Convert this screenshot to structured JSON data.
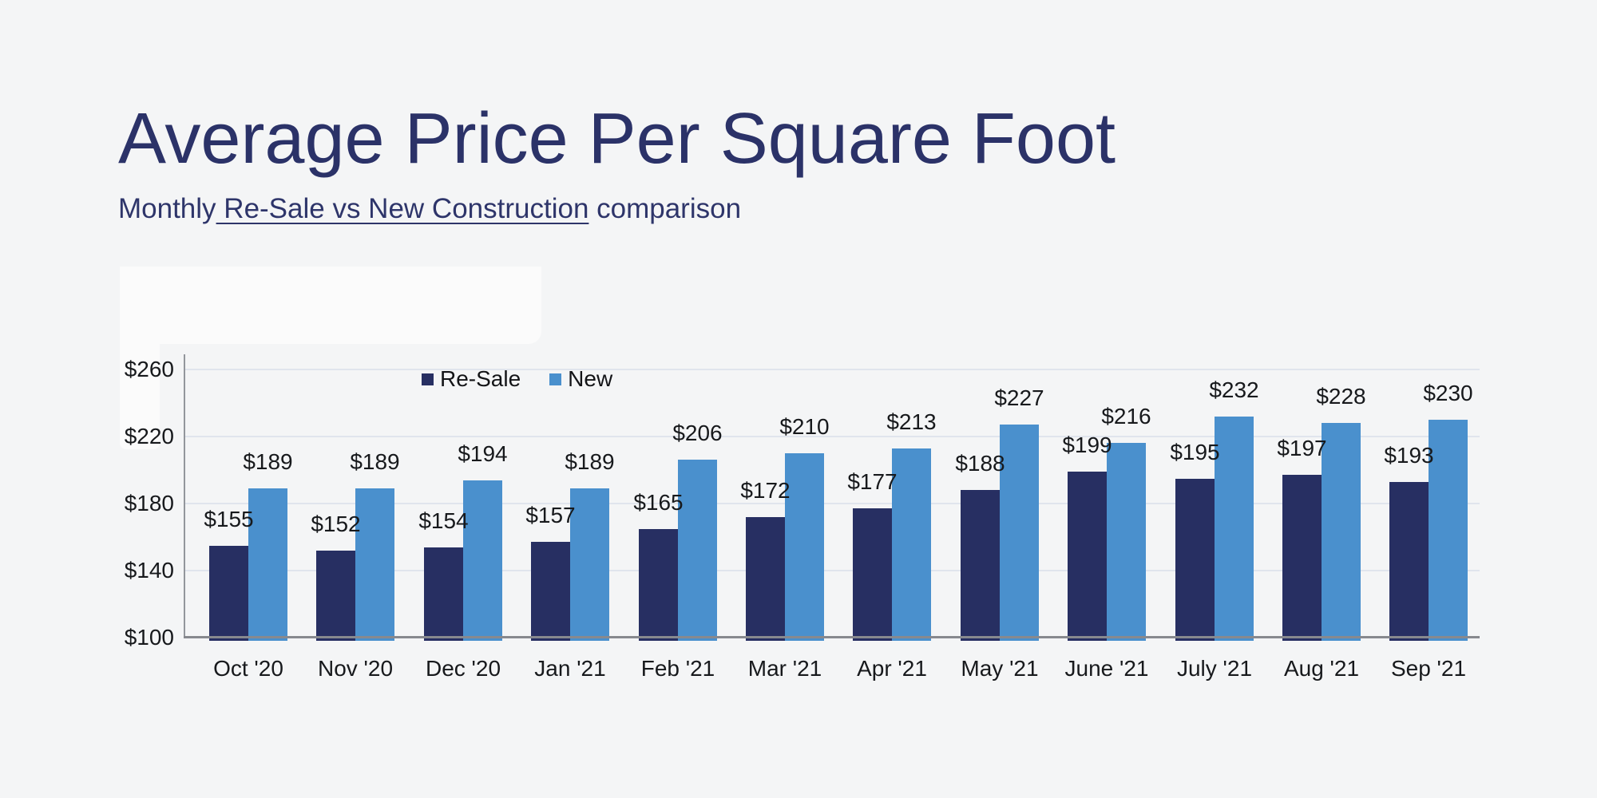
{
  "header": {
    "title": "Average Price Per Square Foot",
    "subtitle_prefix": "Monthly",
    "subtitle_underlined": " Re-Sale vs New Construction",
    "subtitle_suffix": " comparison"
  },
  "colors": {
    "background": "#f4f5f6",
    "title_text": "#2b3268",
    "resale_bar": "#272f62",
    "new_bar": "#4a90cd",
    "gridline": "#e0e5ed",
    "axis_line": "#87898e",
    "label_text": "#17191c"
  },
  "chart_data": {
    "type": "bar",
    "title": "Average Price Per Square Foot",
    "subtitle": "Monthly Re-Sale vs New Construction comparison",
    "categories": [
      "Oct '20",
      "Nov '20",
      "Dec '20",
      "Jan '21",
      "Feb '21",
      "Mar '21",
      "Apr '21",
      "May '21",
      "June '21",
      "July '21",
      "Aug '21",
      "Sep '21"
    ],
    "series": [
      {
        "name": "Re-Sale",
        "color": "#272f62",
        "values": [
          155,
          152,
          154,
          157,
          165,
          172,
          177,
          188,
          199,
          195,
          197,
          193
        ]
      },
      {
        "name": "New",
        "color": "#4a90cd",
        "values": [
          189,
          189,
          194,
          189,
          206,
          210,
          213,
          227,
          216,
          232,
          228,
          230
        ]
      }
    ],
    "value_prefix": "$",
    "yticks": [
      {
        "label": "$260",
        "value": 260
      },
      {
        "label": "$220",
        "value": 220
      },
      {
        "label": "$180",
        "value": 180
      },
      {
        "label": "$140",
        "value": 140
      },
      {
        "label": "$100",
        "value": 100
      }
    ],
    "ylim": [
      100,
      260
    ],
    "xlabel": "",
    "ylabel": "",
    "grid": true,
    "legend_position": "top-left-of-plot",
    "legend_entries": [
      "Re-Sale",
      "New"
    ]
  }
}
